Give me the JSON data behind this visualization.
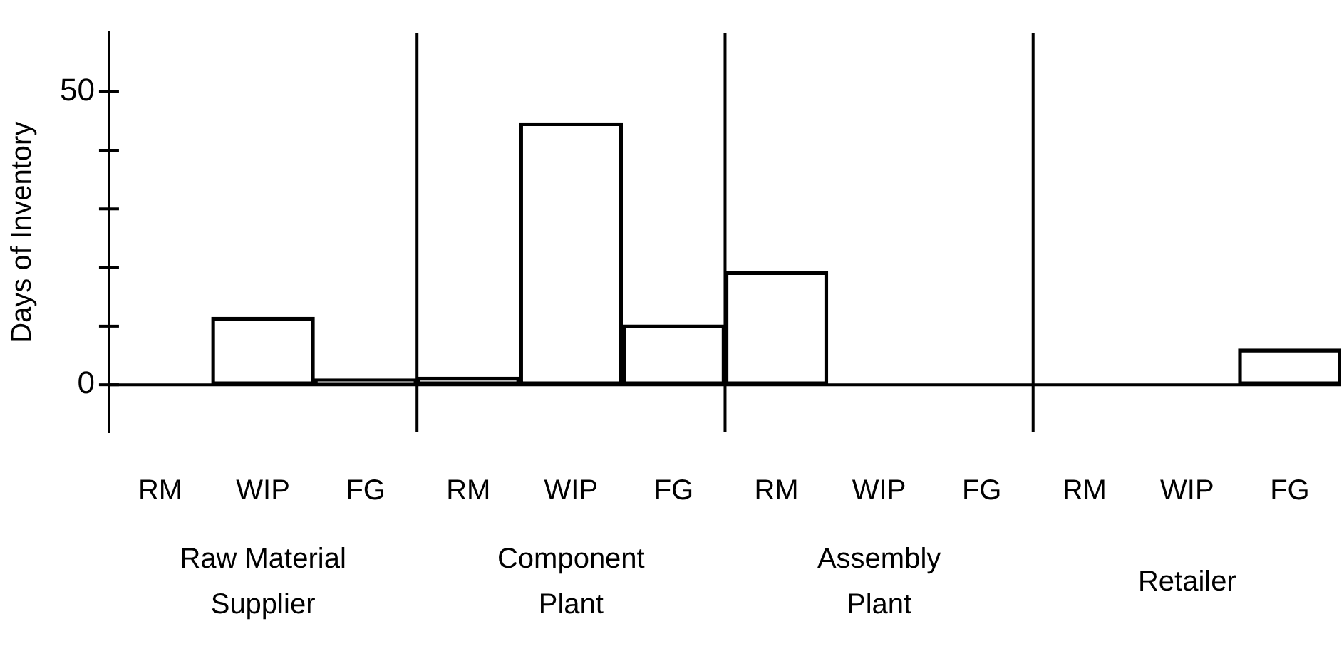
{
  "chart_data": {
    "type": "bar",
    "ylabel": "Days of Inventory",
    "categories": [
      "RM",
      "WIP",
      "FG",
      "RM",
      "WIP",
      "FG",
      "RM",
      "WIP",
      "FG",
      "RM",
      "WIP",
      "FG"
    ],
    "values": [
      0,
      11.5,
      1,
      1.3,
      44.7,
      10.2,
      19.3,
      0,
      0,
      0,
      0,
      6.1
    ],
    "color": "#000000",
    "ylim": [
      -8,
      60
    ],
    "yticks": [
      0,
      {
        "value": 10,
        "label": null
      },
      {
        "value": 20,
        "label": null
      },
      {
        "value": 30,
        "label": null
      },
      {
        "value": 40,
        "label": null
      },
      50
    ],
    "annotations": [
      "Raw Material Supplier",
      "Component Plant",
      "Assembly Plant",
      "Retailer"
    ],
    "ref_lines": [
      {
        "axis": "y",
        "value": 0,
        "color": "#000000"
      }
    ],
    "grid": false,
    "legend": false
  }
}
